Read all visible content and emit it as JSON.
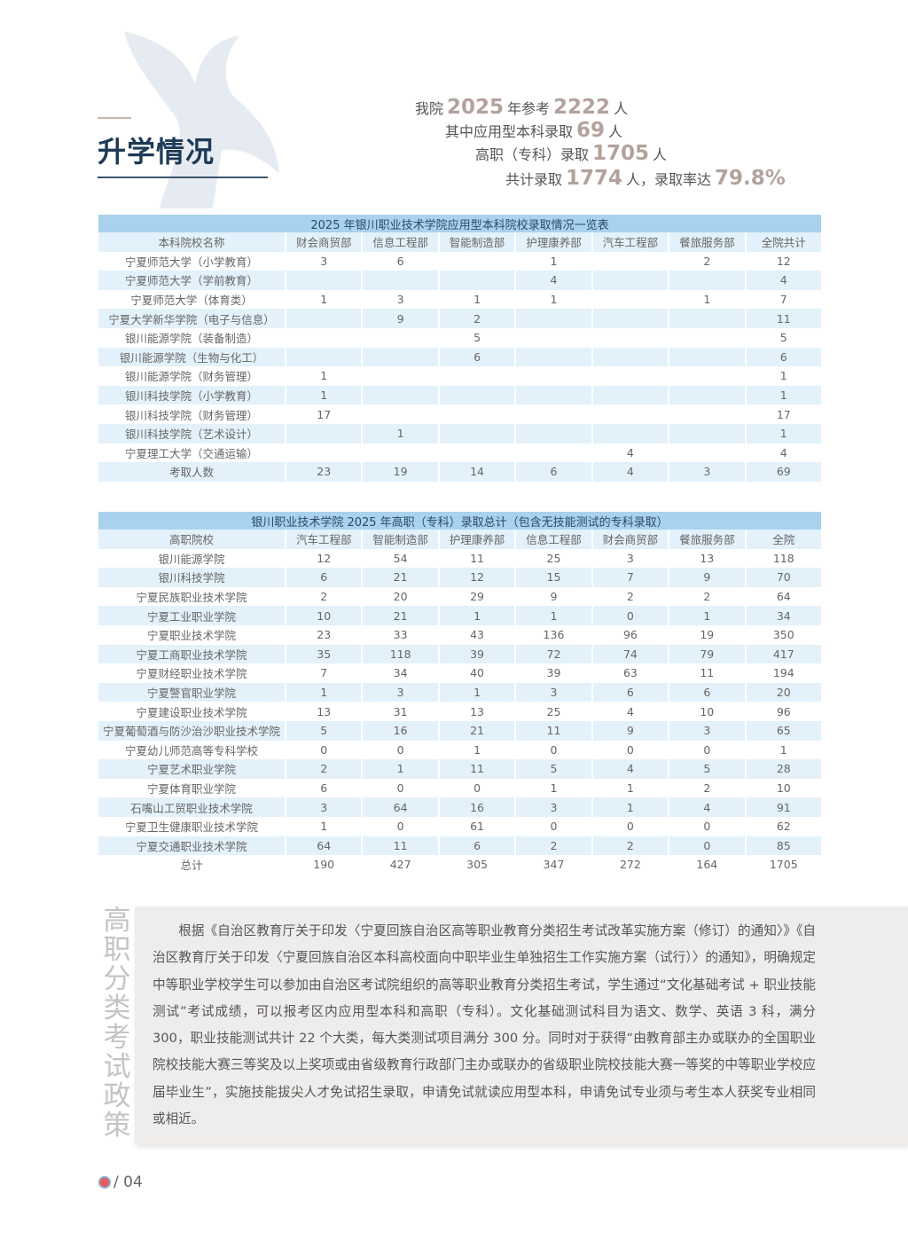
{
  "header": {
    "title": "升学情况",
    "stats": [
      {
        "pre": "我院",
        "n1": "2025",
        "mid": "年参考",
        "n2": "2222",
        "post": "人"
      },
      {
        "pre": "其中应用型本科录取",
        "n1": "69",
        "mid": "人",
        "n2": "",
        "post": ""
      },
      {
        "pre": "高职（专科）录取",
        "n1": "1705",
        "mid": "人",
        "n2": "",
        "post": ""
      },
      {
        "pre": "共计录取",
        "n1": "1774",
        "mid": "人，录取率达",
        "n2": "79.8%",
        "post": ""
      }
    ]
  },
  "colors": {
    "title": "#1e3b57",
    "number": "#b3a29c",
    "table_caption": "#a9d2ee",
    "table_stripe": "#e3f1fb",
    "policy_bg": "#efedeb"
  },
  "table1": {
    "caption": "2025 年银川职业技术学院应用型本科院校录取情况一览表",
    "headers": [
      "本科院校名称",
      "财会商贸部",
      "信息工程部",
      "智能制造部",
      "护理康养部",
      "汽车工程部",
      "餐旅服务部",
      "全院共计"
    ],
    "rows": [
      [
        "宁夏师范大学（小学教育）",
        "3",
        "6",
        "",
        "1",
        "",
        "2",
        "12"
      ],
      [
        "宁夏师范大学（学前教育）",
        "",
        "",
        "",
        "4",
        "",
        "",
        "4"
      ],
      [
        "宁夏师范大学（体育类）",
        "1",
        "3",
        "1",
        "1",
        "",
        "1",
        "7"
      ],
      [
        "宁夏大学新华学院（电子与信息）",
        "",
        "9",
        "2",
        "",
        "",
        "",
        "11"
      ],
      [
        "银川能源学院（装备制造）",
        "",
        "",
        "5",
        "",
        "",
        "",
        "5"
      ],
      [
        "银川能源学院（生物与化工）",
        "",
        "",
        "6",
        "",
        "",
        "",
        "6"
      ],
      [
        "银川能源学院（财务管理）",
        "1",
        "",
        "",
        "",
        "",
        "",
        "1"
      ],
      [
        "银川科技学院（小学教育）",
        "1",
        "",
        "",
        "",
        "",
        "",
        "1"
      ],
      [
        "银川科技学院（财务管理）",
        "17",
        "",
        "",
        "",
        "",
        "",
        "17"
      ],
      [
        "银川科技学院（艺术设计）",
        "",
        "1",
        "",
        "",
        "",
        "",
        "1"
      ],
      [
        "宁夏理工大学（交通运输）",
        "",
        "",
        "",
        "",
        "4",
        "",
        "4"
      ],
      [
        "考取人数",
        "23",
        "19",
        "14",
        "6",
        "4",
        "3",
        "69"
      ]
    ]
  },
  "table2": {
    "caption": "银川职业技术学院 2025 年高职（专科）录取总计（包含无技能测试的专科录取）",
    "headers": [
      "高职院校",
      "汽车工程部",
      "智能制造部",
      "护理康养部",
      "信息工程部",
      "财会商贸部",
      "餐旅服务部",
      "全院"
    ],
    "rows": [
      [
        "银川能源学院",
        "12",
        "54",
        "11",
        "25",
        "3",
        "13",
        "118"
      ],
      [
        "银川科技学院",
        "6",
        "21",
        "12",
        "15",
        "7",
        "9",
        "70"
      ],
      [
        "宁夏民族职业技术学院",
        "2",
        "20",
        "29",
        "9",
        "2",
        "2",
        "64"
      ],
      [
        "宁夏工业职业学院",
        "10",
        "21",
        "1",
        "1",
        "0",
        "1",
        "34"
      ],
      [
        "宁夏职业技术学院",
        "23",
        "33",
        "43",
        "136",
        "96",
        "19",
        "350"
      ],
      [
        "宁夏工商职业技术学院",
        "35",
        "118",
        "39",
        "72",
        "74",
        "79",
        "417"
      ],
      [
        "宁夏财经职业技术学院",
        "7",
        "34",
        "40",
        "39",
        "63",
        "11",
        "194"
      ],
      [
        "宁夏警官职业学院",
        "1",
        "3",
        "1",
        "3",
        "6",
        "6",
        "20"
      ],
      [
        "宁夏建设职业技术学院",
        "13",
        "31",
        "13",
        "25",
        "4",
        "10",
        "96"
      ],
      [
        "宁夏葡萄酒与防沙治沙职业技术学院",
        "5",
        "16",
        "21",
        "11",
        "9",
        "3",
        "65"
      ],
      [
        "宁夏幼儿师范高等专科学校",
        "0",
        "0",
        "1",
        "0",
        "0",
        "0",
        "1"
      ],
      [
        "宁夏艺术职业学院",
        "2",
        "1",
        "11",
        "5",
        "4",
        "5",
        "28"
      ],
      [
        "宁夏体育职业学院",
        "6",
        "0",
        "0",
        "1",
        "1",
        "2",
        "10"
      ],
      [
        "石嘴山工贸职业技术学院",
        "3",
        "64",
        "16",
        "3",
        "1",
        "4",
        "91"
      ],
      [
        "宁夏卫生健康职业技术学院",
        "1",
        "0",
        "61",
        "0",
        "0",
        "0",
        "62"
      ],
      [
        "宁夏交通职业技术学院",
        "64",
        "11",
        "6",
        "2",
        "2",
        "0",
        "85"
      ],
      [
        "总计",
        "190",
        "427",
        "305",
        "347",
        "272",
        "164",
        "1705"
      ]
    ]
  },
  "policy": {
    "side_title": "高职分类考试政策",
    "text": "根据《自治区教育厅关于印发〈宁夏回族自治区高等职业教育分类招生考试改革实施方案（修订）的通知〉》《自治区教育厅关于印发〈宁夏回族自治区本科高校面向中职毕业生单独招生工作实施方案（试行）〉的通知》，明确规定中等职业学校学生可以参加由自治区考试院组织的高等职业教育分类招生考试，学生通过“文化基础考试 + 职业技能测试”考试成绩，可以报考区内应用型本科和高职（专科）。文化基础测试科目为语文、数学、英语 3 科，满分 300，职业技能测试共计 22 个大类，每大类测试项目满分 300 分。同时对于获得“由教育部主办或联办的全国职业院校技能大赛三等奖及以上奖项或由省级教育行政部门主办或联办的省级职业院校技能大赛一等奖的中等职业学校应届毕业生”，实施技能拔尖人才免试招生录取，申请免试就读应用型本科，申请免试专业须与考生本人获奖专业相同或相近。"
  },
  "footer": {
    "page": "/ 04",
    "icon": "school-logo-icon"
  }
}
